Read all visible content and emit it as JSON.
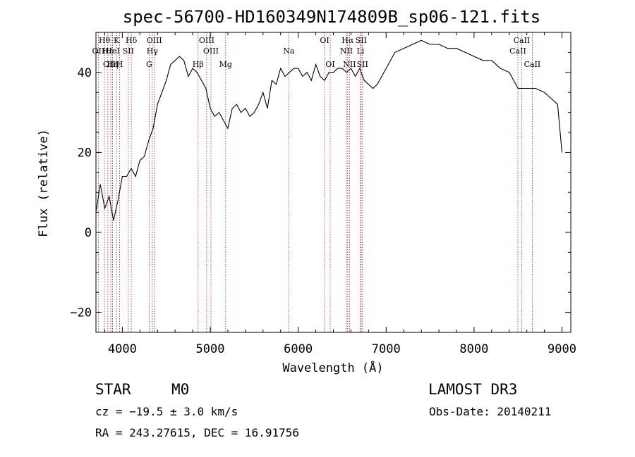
{
  "chart_data": {
    "type": "line",
    "title": "spec-56700-HD160349N174809B_sp06-121.fits",
    "xlabel": "Wavelength (Å)",
    "ylabel": "Flux (relative)",
    "xlim": [
      3700,
      9100
    ],
    "ylim": [
      -25,
      50
    ],
    "xticks": [
      4000,
      5000,
      6000,
      7000,
      8000,
      9000
    ],
    "yticks": [
      -20,
      0,
      20,
      40
    ],
    "grid": false,
    "legend": "none",
    "series": [
      {
        "color": "#000000",
        "x": [
          3700,
          3750,
          3800,
          3850,
          3900,
          3950,
          4000,
          4050,
          4100,
          4150,
          4200,
          4250,
          4300,
          4350,
          4400,
          4450,
          4500,
          4550,
          4600,
          4650,
          4700,
          4750,
          4800,
          4850,
          4900,
          4950,
          5000,
          5050,
          5100,
          5150,
          5200,
          5250,
          5300,
          5350,
          5400,
          5450,
          5500,
          5550,
          5600,
          5650,
          5700,
          5750,
          5800,
          5850,
          5900,
          5950,
          6000,
          6050,
          6100,
          6150,
          6200,
          6250,
          6300,
          6350,
          6400,
          6450,
          6500,
          6550,
          6600,
          6650,
          6700,
          6750,
          6800,
          6850,
          6900,
          6950,
          7000,
          7100,
          7200,
          7300,
          7400,
          7500,
          7600,
          7700,
          7800,
          7900,
          8000,
          8100,
          8200,
          8300,
          8400,
          8500,
          8600,
          8700,
          8800,
          8900,
          8950,
          9000
        ],
        "y": [
          5,
          12,
          6,
          9,
          3,
          8,
          14,
          14,
          16,
          14,
          18,
          19,
          23,
          26,
          32,
          35,
          38,
          42,
          43,
          44,
          43,
          39,
          41,
          40,
          38,
          36,
          31,
          29,
          30,
          28,
          26,
          31,
          32,
          30,
          31,
          29,
          30,
          32,
          35,
          31,
          38,
          37,
          41,
          39,
          40,
          41,
          41,
          39,
          40,
          38,
          42,
          39,
          38,
          40,
          40,
          41,
          41,
          40,
          41,
          39,
          41,
          38,
          37,
          36,
          37,
          39,
          41,
          45,
          46,
          47,
          48,
          47,
          47,
          46,
          46,
          45,
          44,
          43,
          43,
          41,
          40,
          36,
          36,
          36,
          35,
          33,
          32,
          20
        ]
      }
    ],
    "spectral_lines": [
      {
        "label": "Hθ",
        "x": 3797,
        "row": 1
      },
      {
        "label": "OII",
        "x": 3727,
        "row": 2
      },
      {
        "label": "OIII",
        "x": 3869,
        "row": 3
      },
      {
        "label": "Hε",
        "x": 3835,
        "row": 2
      },
      {
        "label": "K",
        "x": 3934,
        "row": 1
      },
      {
        "label": "HeI",
        "x": 3889,
        "row": 2
      },
      {
        "label": "Hη",
        "x": 3889,
        "row": 3
      },
      {
        "label": "H",
        "x": 3969,
        "row": 3
      },
      {
        "label": "Hδ",
        "x": 4102,
        "row": 1
      },
      {
        "label": "SII",
        "x": 4068,
        "row": 2
      },
      {
        "label": "OIII",
        "x": 4363,
        "row": 1
      },
      {
        "label": "Hγ",
        "x": 4341,
        "row": 2
      },
      {
        "label": "G",
        "x": 4305,
        "row": 3
      },
      {
        "label": "Hβ",
        "x": 4861,
        "row": 3
      },
      {
        "label": "OIII",
        "x": 4959,
        "row": 1
      },
      {
        "label": "OIII",
        "x": 5007,
        "row": 2
      },
      {
        "label": "Mg",
        "x": 5175,
        "row": 3
      },
      {
        "label": "Na",
        "x": 5893,
        "row": 2
      },
      {
        "label": "OI",
        "x": 6300,
        "row": 1
      },
      {
        "label": "OI",
        "x": 6364,
        "row": 3
      },
      {
        "label": "Hα",
        "x": 6563,
        "row": 1
      },
      {
        "label": "NII",
        "x": 6548,
        "row": 2
      },
      {
        "label": "NII",
        "x": 6584,
        "row": 3
      },
      {
        "label": "SII",
        "x": 6716,
        "row": 1
      },
      {
        "label": "Li",
        "x": 6708,
        "row": 2
      },
      {
        "label": "SII",
        "x": 6731,
        "row": 3
      },
      {
        "label": "CaII",
        "x": 8542,
        "row": 1
      },
      {
        "label": "CaII",
        "x": 8498,
        "row": 2
      },
      {
        "label": "CaII",
        "x": 8662,
        "row": 3
      }
    ]
  },
  "info": {
    "object_class": "STAR",
    "subclass": "M0",
    "survey": "LAMOST DR3",
    "cz": "cz = −19.5 ± 3.0 km/s",
    "obs_date": "Obs-Date: 20140211",
    "coords": "RA = 243.27615, DEC =  16.91756"
  }
}
